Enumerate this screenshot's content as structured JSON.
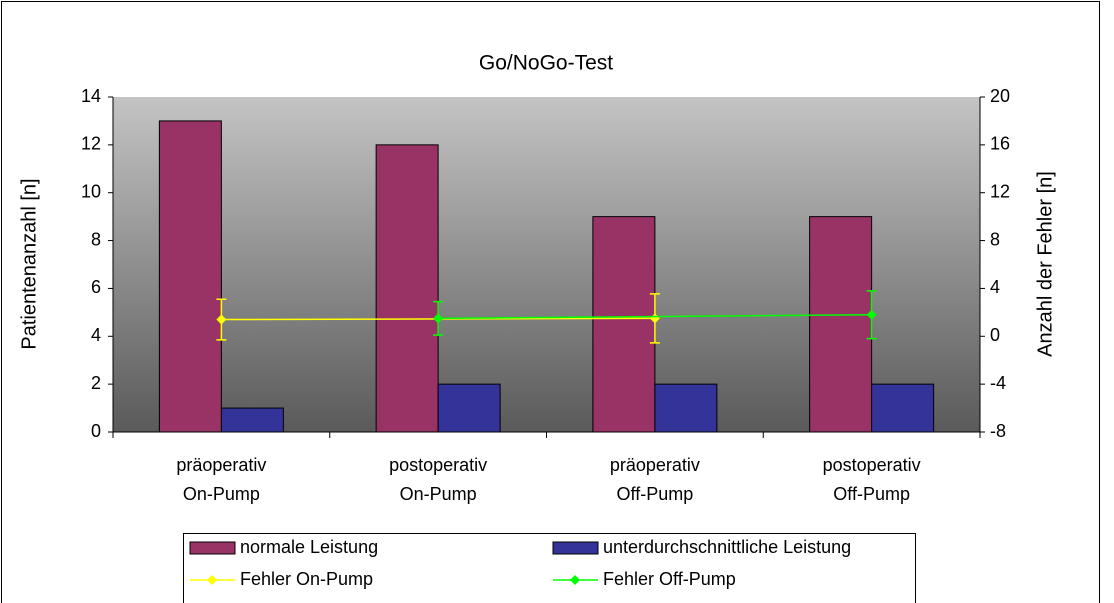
{
  "chart_data": {
    "type": "bar",
    "title": "Go/NoGo-Test",
    "ylabel": "Patientenanzahl [n]",
    "y2label": "Anzahl der Fehler [n]",
    "categories": [
      "präoperativ\nOn-Pump",
      "postoperativ\nOn-Pump",
      "präoperativ\nOff-Pump",
      "postoperativ\nOff-Pump"
    ],
    "series": [
      {
        "name": "normale Leistung",
        "color": "#993366",
        "values": [
          13,
          12,
          9,
          9
        ]
      },
      {
        "name": "unterdurchschnittliche Leistung",
        "color": "#333399",
        "values": [
          1,
          2,
          2,
          2
        ]
      }
    ],
    "line_series": [
      {
        "name": "Fehler On-Pump",
        "color": "#ffff00",
        "axis": "y2",
        "x": [
          0,
          2
        ],
        "values": [
          1.4,
          1.5
        ],
        "errors": [
          1.7,
          2.05
        ]
      },
      {
        "name": "Fehler Off-Pump",
        "color": "#00ff00",
        "axis": "y2",
        "x": [
          1,
          3
        ],
        "values": [
          1.5,
          1.8
        ],
        "errors": [
          1.4,
          2.0
        ]
      }
    ],
    "ylim": [
      0,
      14
    ],
    "yticks": [
      0,
      2,
      4,
      6,
      8,
      10,
      12,
      14
    ],
    "y2lim": [
      -8,
      20
    ],
    "y2ticks": [
      -8,
      -4,
      0,
      4,
      8,
      12,
      16,
      20
    ],
    "legend": "bottom"
  }
}
